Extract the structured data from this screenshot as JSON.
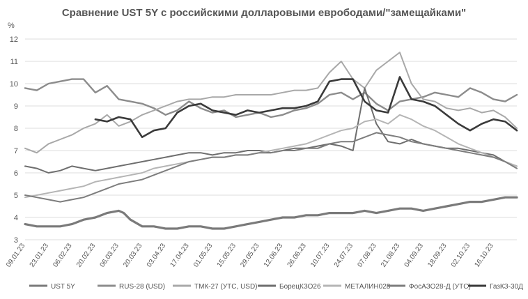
{
  "chart_data": {
    "type": "line",
    "title": "Сравнение UST 5Y с российскими долларовыми еврободами/\"замещайками\"",
    "ylabel": "%",
    "ylim": [
      3,
      12
    ],
    "yticks": [
      3,
      4,
      5,
      6,
      7,
      8,
      9,
      10,
      11,
      12
    ],
    "grid": "horizontal",
    "legend": "bottom",
    "x_start": "09.01.23",
    "x_end": "30.10.23",
    "x_ticks": [
      "09.01.23",
      "23.01.23",
      "06.02.23",
      "20.02.23",
      "06.03.23",
      "20.03.23",
      "03.04.23",
      "17.04.23",
      "01.05.23",
      "15.05.23",
      "29.05.23",
      "12.06.23",
      "26.06.23",
      "10.07.23",
      "24.07.23",
      "07.08.23",
      "21.08.23",
      "04.09.23",
      "18.09.23",
      "02.10.23",
      "16.10.23"
    ],
    "series": [
      {
        "name": "UST 5Y",
        "color": "#7a7a7a",
        "width": 3.2,
        "x": [
          "09.01.23",
          "16.01.23",
          "23.01.23",
          "30.01.23",
          "06.02.23",
          "13.02.23",
          "20.02.23",
          "27.02.23",
          "06.03.23",
          "09.03.23",
          "13.03.23",
          "20.03.23",
          "27.03.23",
          "03.04.23",
          "10.04.23",
          "17.04.23",
          "24.04.23",
          "01.05.23",
          "08.05.23",
          "15.05.23",
          "22.05.23",
          "29.05.23",
          "05.06.23",
          "12.06.23",
          "19.06.23",
          "26.06.23",
          "03.07.23",
          "10.07.23",
          "17.07.23",
          "24.07.23",
          "31.07.23",
          "07.08.23",
          "14.08.23",
          "21.08.23",
          "28.08.23",
          "04.09.23",
          "11.09.23",
          "18.09.23",
          "25.09.23",
          "02.10.23",
          "09.10.23",
          "16.10.23",
          "23.10.23",
          "30.10.23"
        ],
        "y": [
          3.7,
          3.6,
          3.6,
          3.6,
          3.7,
          3.9,
          4.0,
          4.2,
          4.3,
          4.2,
          3.9,
          3.6,
          3.6,
          3.5,
          3.5,
          3.6,
          3.6,
          3.5,
          3.5,
          3.6,
          3.7,
          3.8,
          3.9,
          4.0,
          4.0,
          4.1,
          4.1,
          4.2,
          4.2,
          4.2,
          4.3,
          4.2,
          4.3,
          4.4,
          4.4,
          4.3,
          4.4,
          4.5,
          4.6,
          4.7,
          4.7,
          4.8,
          4.9,
          4.9
        ]
      },
      {
        "name": "RUS-28 (USD)",
        "color": "#8c8c8c",
        "width": 2.4,
        "x": [
          "09.01.23",
          "16.01.23",
          "23.01.23",
          "30.01.23",
          "06.02.23",
          "13.02.23",
          "20.02.23",
          "27.02.23",
          "06.03.23",
          "13.03.23",
          "20.03.23",
          "27.03.23",
          "03.04.23",
          "10.04.23",
          "17.04.23",
          "24.04.23",
          "01.05.23",
          "08.05.23",
          "15.05.23",
          "22.05.23",
          "29.05.23",
          "05.06.23",
          "12.06.23",
          "19.06.23",
          "26.06.23",
          "03.07.23",
          "10.07.23",
          "17.07.23",
          "24.07.23",
          "31.07.23",
          "07.08.23",
          "14.08.23",
          "21.08.23",
          "28.08.23",
          "04.09.23",
          "11.09.23",
          "18.09.23",
          "25.09.23",
          "02.10.23",
          "09.10.23",
          "16.10.23",
          "23.10.23",
          "30.10.23"
        ],
        "y": [
          9.8,
          9.7,
          10.0,
          10.1,
          10.2,
          10.2,
          9.6,
          9.9,
          9.3,
          9.2,
          9.1,
          8.9,
          8.6,
          8.8,
          9.2,
          8.9,
          8.7,
          8.8,
          8.5,
          8.6,
          8.7,
          8.5,
          8.6,
          8.8,
          8.9,
          9.1,
          9.5,
          9.6,
          9.3,
          9.6,
          9.1,
          8.8,
          9.2,
          9.3,
          9.4,
          9.6,
          9.5,
          9.4,
          9.8,
          9.6,
          9.3,
          9.2,
          9.5
        ]
      },
      {
        "name": "ТМК-27 (УТС, USD)",
        "color": "#a8a8a8",
        "width": 2.0,
        "x": [
          "09.01.23",
          "16.01.23",
          "23.01.23",
          "30.01.23",
          "06.02.23",
          "13.02.23",
          "20.02.23",
          "27.02.23",
          "06.03.23",
          "13.03.23",
          "20.03.23",
          "27.03.23",
          "03.04.23",
          "10.04.23",
          "17.04.23",
          "24.04.23",
          "01.05.23",
          "08.05.23",
          "15.05.23",
          "22.05.23",
          "29.05.23",
          "05.06.23",
          "12.06.23",
          "19.06.23",
          "26.06.23",
          "03.07.23",
          "10.07.23",
          "17.07.23",
          "24.07.23",
          "31.07.23",
          "07.08.23",
          "14.08.23",
          "21.08.23",
          "28.08.23",
          "04.09.23",
          "11.09.23",
          "18.09.23",
          "25.09.23",
          "02.10.23",
          "09.10.23",
          "16.10.23",
          "23.10.23",
          "30.10.23"
        ],
        "y": [
          7.1,
          6.9,
          7.3,
          7.5,
          7.7,
          8.0,
          8.2,
          8.6,
          8.1,
          8.3,
          8.6,
          8.8,
          9.0,
          9.2,
          9.3,
          9.3,
          9.4,
          9.4,
          9.5,
          9.5,
          9.5,
          9.5,
          9.6,
          9.7,
          9.7,
          9.8,
          10.5,
          11.0,
          10.2,
          9.8,
          10.6,
          11.0,
          11.4,
          10.0,
          9.3,
          9.2,
          8.9,
          8.8,
          8.9,
          8.7,
          8.8,
          8.5,
          8.0
        ]
      },
      {
        "name": "БорецКЗО26",
        "color": "#6e6e6e",
        "width": 2.0,
        "x": [
          "09.01.23",
          "16.01.23",
          "23.01.23",
          "30.01.23",
          "06.02.23",
          "13.02.23",
          "20.02.23",
          "27.02.23",
          "06.03.23",
          "13.03.23",
          "20.03.23",
          "27.03.23",
          "03.04.23",
          "10.04.23",
          "17.04.23",
          "24.04.23",
          "01.05.23",
          "08.05.23",
          "15.05.23",
          "22.05.23",
          "29.05.23",
          "05.06.23",
          "12.06.23",
          "19.06.23",
          "26.06.23",
          "03.07.23",
          "10.07.23",
          "17.07.23",
          "24.07.23",
          "31.07.23",
          "07.08.23",
          "14.08.23",
          "21.08.23",
          "28.08.23",
          "04.09.23",
          "11.09.23",
          "18.09.23",
          "25.09.23",
          "02.10.23",
          "09.10.23",
          "16.10.23",
          "23.10.23",
          "30.10.23"
        ],
        "y": [
          6.3,
          6.2,
          6.0,
          6.1,
          6.3,
          6.2,
          6.1,
          6.2,
          6.3,
          6.4,
          6.5,
          6.6,
          6.7,
          6.8,
          6.9,
          6.9,
          6.8,
          6.9,
          6.9,
          7.0,
          7.0,
          6.9,
          7.0,
          7.1,
          7.1,
          7.2,
          7.3,
          7.2,
          7.0,
          9.8,
          8.2,
          7.4,
          7.3,
          7.5,
          7.3,
          7.2,
          7.1,
          7.1,
          7.0,
          6.9,
          6.8,
          6.5,
          6.3
        ]
      },
      {
        "name": "МЕТАЛИН028",
        "color": "#b5b5b5",
        "width": 2.0,
        "x": [
          "09.01.23",
          "16.01.23",
          "23.01.23",
          "30.01.23",
          "06.02.23",
          "13.02.23",
          "20.02.23",
          "27.02.23",
          "06.03.23",
          "13.03.23",
          "20.03.23",
          "27.03.23",
          "03.04.23",
          "10.04.23",
          "17.04.23",
          "24.04.23",
          "01.05.23",
          "08.05.23",
          "15.05.23",
          "22.05.23",
          "29.05.23",
          "05.06.23",
          "12.06.23",
          "19.06.23",
          "26.06.23",
          "03.07.23",
          "10.07.23",
          "17.07.23",
          "24.07.23",
          "31.07.23",
          "07.08.23",
          "14.08.23",
          "21.08.23",
          "28.08.23",
          "04.09.23",
          "11.09.23",
          "18.09.23",
          "25.09.23",
          "02.10.23",
          "09.10.23",
          "16.10.23",
          "23.10.23",
          "30.10.23"
        ],
        "y": [
          4.9,
          5.0,
          5.1,
          5.2,
          5.3,
          5.4,
          5.6,
          5.7,
          5.8,
          5.9,
          6.0,
          6.2,
          6.3,
          6.4,
          6.5,
          6.6,
          6.7,
          6.7,
          6.8,
          6.8,
          6.9,
          7.0,
          7.1,
          7.2,
          7.3,
          7.5,
          7.7,
          7.9,
          8.0,
          8.3,
          8.4,
          8.2,
          8.6,
          8.4,
          8.1,
          7.9,
          7.6,
          7.3,
          7.1,
          6.9,
          6.7,
          6.5,
          6.3
        ]
      },
      {
        "name": "ФосАЗО28-Д (УТС)",
        "color": "#7d7d7d",
        "width": 2.0,
        "x": [
          "09.01.23",
          "16.01.23",
          "23.01.23",
          "30.01.23",
          "06.02.23",
          "13.02.23",
          "20.02.23",
          "27.02.23",
          "06.03.23",
          "13.03.23",
          "20.03.23",
          "27.03.23",
          "03.04.23",
          "10.04.23",
          "17.04.23",
          "24.04.23",
          "01.05.23",
          "08.05.23",
          "15.05.23",
          "22.05.23",
          "29.05.23",
          "05.06.23",
          "12.06.23",
          "19.06.23",
          "26.06.23",
          "03.07.23",
          "10.07.23",
          "17.07.23",
          "24.07.23",
          "31.07.23",
          "07.08.23",
          "14.08.23",
          "21.08.23",
          "28.08.23",
          "04.09.23",
          "11.09.23",
          "18.09.23",
          "25.09.23",
          "02.10.23",
          "09.10.23",
          "16.10.23",
          "23.10.23",
          "30.10.23"
        ],
        "y": [
          5.0,
          4.9,
          4.8,
          4.7,
          4.8,
          4.9,
          5.1,
          5.3,
          5.5,
          5.6,
          5.7,
          5.9,
          6.1,
          6.3,
          6.5,
          6.6,
          6.7,
          6.7,
          6.8,
          6.8,
          6.9,
          6.9,
          7.0,
          7.0,
          7.1,
          7.1,
          7.3,
          7.4,
          7.4,
          7.6,
          7.8,
          7.7,
          7.6,
          7.4,
          7.3,
          7.2,
          7.1,
          7.0,
          6.9,
          6.8,
          6.7,
          6.5,
          6.2
        ]
      },
      {
        "name": "ГазКЗ-30Д",
        "color": "#3a3a3a",
        "width": 2.6,
        "x": [
          "20.02.23",
          "27.02.23",
          "06.03.23",
          "13.03.23",
          "20.03.23",
          "27.03.23",
          "03.04.23",
          "10.04.23",
          "17.04.23",
          "24.04.23",
          "01.05.23",
          "08.05.23",
          "15.05.23",
          "22.05.23",
          "29.05.23",
          "05.06.23",
          "12.06.23",
          "19.06.23",
          "26.06.23",
          "03.07.23",
          "10.07.23",
          "17.07.23",
          "24.07.23",
          "31.07.23",
          "07.08.23",
          "14.08.23",
          "21.08.23",
          "28.08.23",
          "04.09.23",
          "11.09.23",
          "18.09.23",
          "25.09.23",
          "02.10.23",
          "09.10.23",
          "16.10.23",
          "23.10.23",
          "30.10.23"
        ],
        "y": [
          8.4,
          8.3,
          8.5,
          8.4,
          7.6,
          7.9,
          8.0,
          8.7,
          9.0,
          9.1,
          8.8,
          8.7,
          8.6,
          8.8,
          8.7,
          8.8,
          8.9,
          8.9,
          9.0,
          9.2,
          10.1,
          10.2,
          10.2,
          9.2,
          8.8,
          8.7,
          10.3,
          9.3,
          9.2,
          9.0,
          8.6,
          8.2,
          7.9,
          8.2,
          8.4,
          8.3,
          7.9
        ]
      }
    ]
  }
}
